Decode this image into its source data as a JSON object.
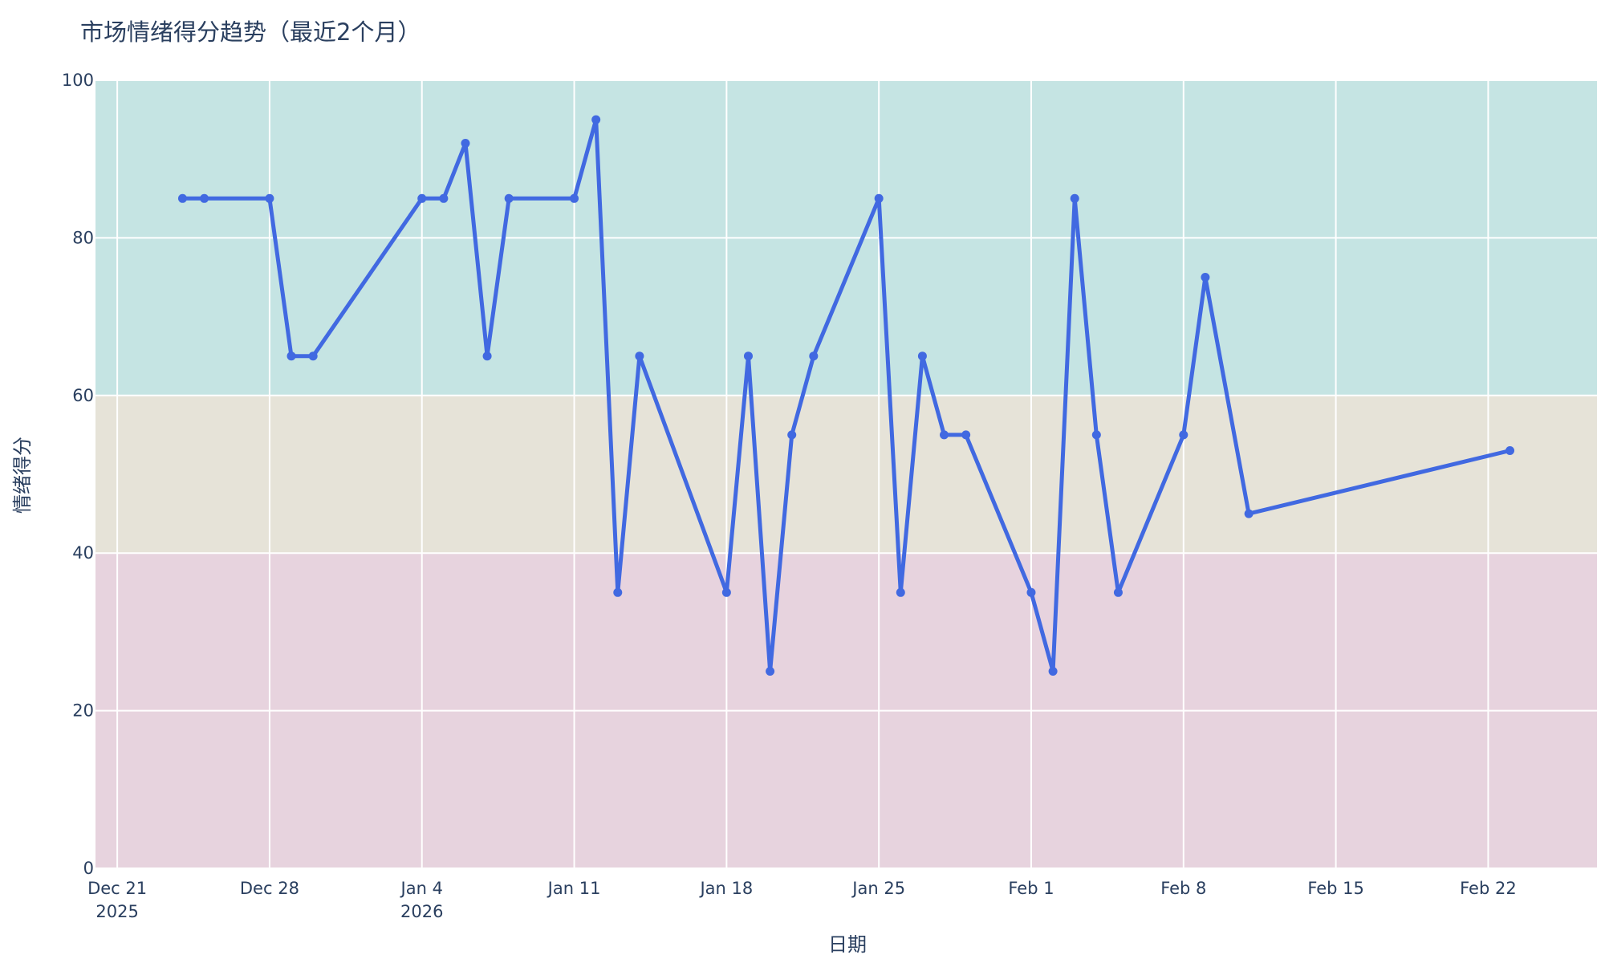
{
  "chart_data": {
    "type": "line",
    "title": "市场情绪得分趋势（最近2个月）",
    "xlabel": "日期",
    "ylabel": "情绪得分",
    "x_axis_type": "date",
    "xlim": [
      "2025-12-20",
      "2026-02-27"
    ],
    "ylim": [
      0,
      100
    ],
    "y_ticks": [
      0,
      20,
      40,
      60,
      80,
      100
    ],
    "x_ticks": [
      {
        "date": "2025-12-21",
        "label": "Dec 21",
        "sublabel": "2025"
      },
      {
        "date": "2025-12-28",
        "label": "Dec 28",
        "sublabel": ""
      },
      {
        "date": "2026-01-04",
        "label": "Jan 4",
        "sublabel": "2026"
      },
      {
        "date": "2026-01-11",
        "label": "Jan 11",
        "sublabel": ""
      },
      {
        "date": "2026-01-18",
        "label": "Jan 18",
        "sublabel": ""
      },
      {
        "date": "2026-01-25",
        "label": "Jan 25",
        "sublabel": ""
      },
      {
        "date": "2026-02-01",
        "label": "Feb 1",
        "sublabel": ""
      },
      {
        "date": "2026-02-08",
        "label": "Feb 8",
        "sublabel": ""
      },
      {
        "date": "2026-02-15",
        "label": "Feb 15",
        "sublabel": ""
      },
      {
        "date": "2026-02-22",
        "label": "Feb 22",
        "sublabel": ""
      }
    ],
    "bands": [
      {
        "from": 60,
        "to": 100,
        "color": "#c5e4e3"
      },
      {
        "from": 40,
        "to": 60,
        "color": "#e6e3d8"
      },
      {
        "from": 0,
        "to": 40,
        "color": "#e7d3de"
      }
    ],
    "grid": true,
    "legend": false,
    "series": [
      {
        "color": "#4169e1",
        "points": [
          {
            "x": "2025-12-24",
            "y": 85
          },
          {
            "x": "2025-12-25",
            "y": 85
          },
          {
            "x": "2025-12-28",
            "y": 85
          },
          {
            "x": "2025-12-29",
            "y": 65
          },
          {
            "x": "2025-12-30",
            "y": 65
          },
          {
            "x": "2026-01-04",
            "y": 85
          },
          {
            "x": "2026-01-05",
            "y": 85
          },
          {
            "x": "2026-01-06",
            "y": 92
          },
          {
            "x": "2026-01-07",
            "y": 65
          },
          {
            "x": "2026-01-08",
            "y": 85
          },
          {
            "x": "2026-01-11",
            "y": 85
          },
          {
            "x": "2026-01-12",
            "y": 95
          },
          {
            "x": "2026-01-13",
            "y": 35
          },
          {
            "x": "2026-01-14",
            "y": 65
          },
          {
            "x": "2026-01-18",
            "y": 35
          },
          {
            "x": "2026-01-19",
            "y": 65
          },
          {
            "x": "2026-01-20",
            "y": 25
          },
          {
            "x": "2026-01-21",
            "y": 55
          },
          {
            "x": "2026-01-22",
            "y": 65
          },
          {
            "x": "2026-01-25",
            "y": 85
          },
          {
            "x": "2026-01-26",
            "y": 35
          },
          {
            "x": "2026-01-27",
            "y": 65
          },
          {
            "x": "2026-01-28",
            "y": 55
          },
          {
            "x": "2026-01-29",
            "y": 55
          },
          {
            "x": "2026-02-01",
            "y": 35
          },
          {
            "x": "2026-02-02",
            "y": 25
          },
          {
            "x": "2026-02-03",
            "y": 85
          },
          {
            "x": "2026-02-04",
            "y": 55
          },
          {
            "x": "2026-02-05",
            "y": 35
          },
          {
            "x": "2026-02-08",
            "y": 55
          },
          {
            "x": "2026-02-09",
            "y": 75
          },
          {
            "x": "2026-02-11",
            "y": 45
          },
          {
            "x": "2026-02-23",
            "y": 53
          }
        ]
      }
    ]
  },
  "colors": {
    "grid": "#ffffff",
    "text": "#2a3f5f",
    "background": "#ffffff"
  }
}
